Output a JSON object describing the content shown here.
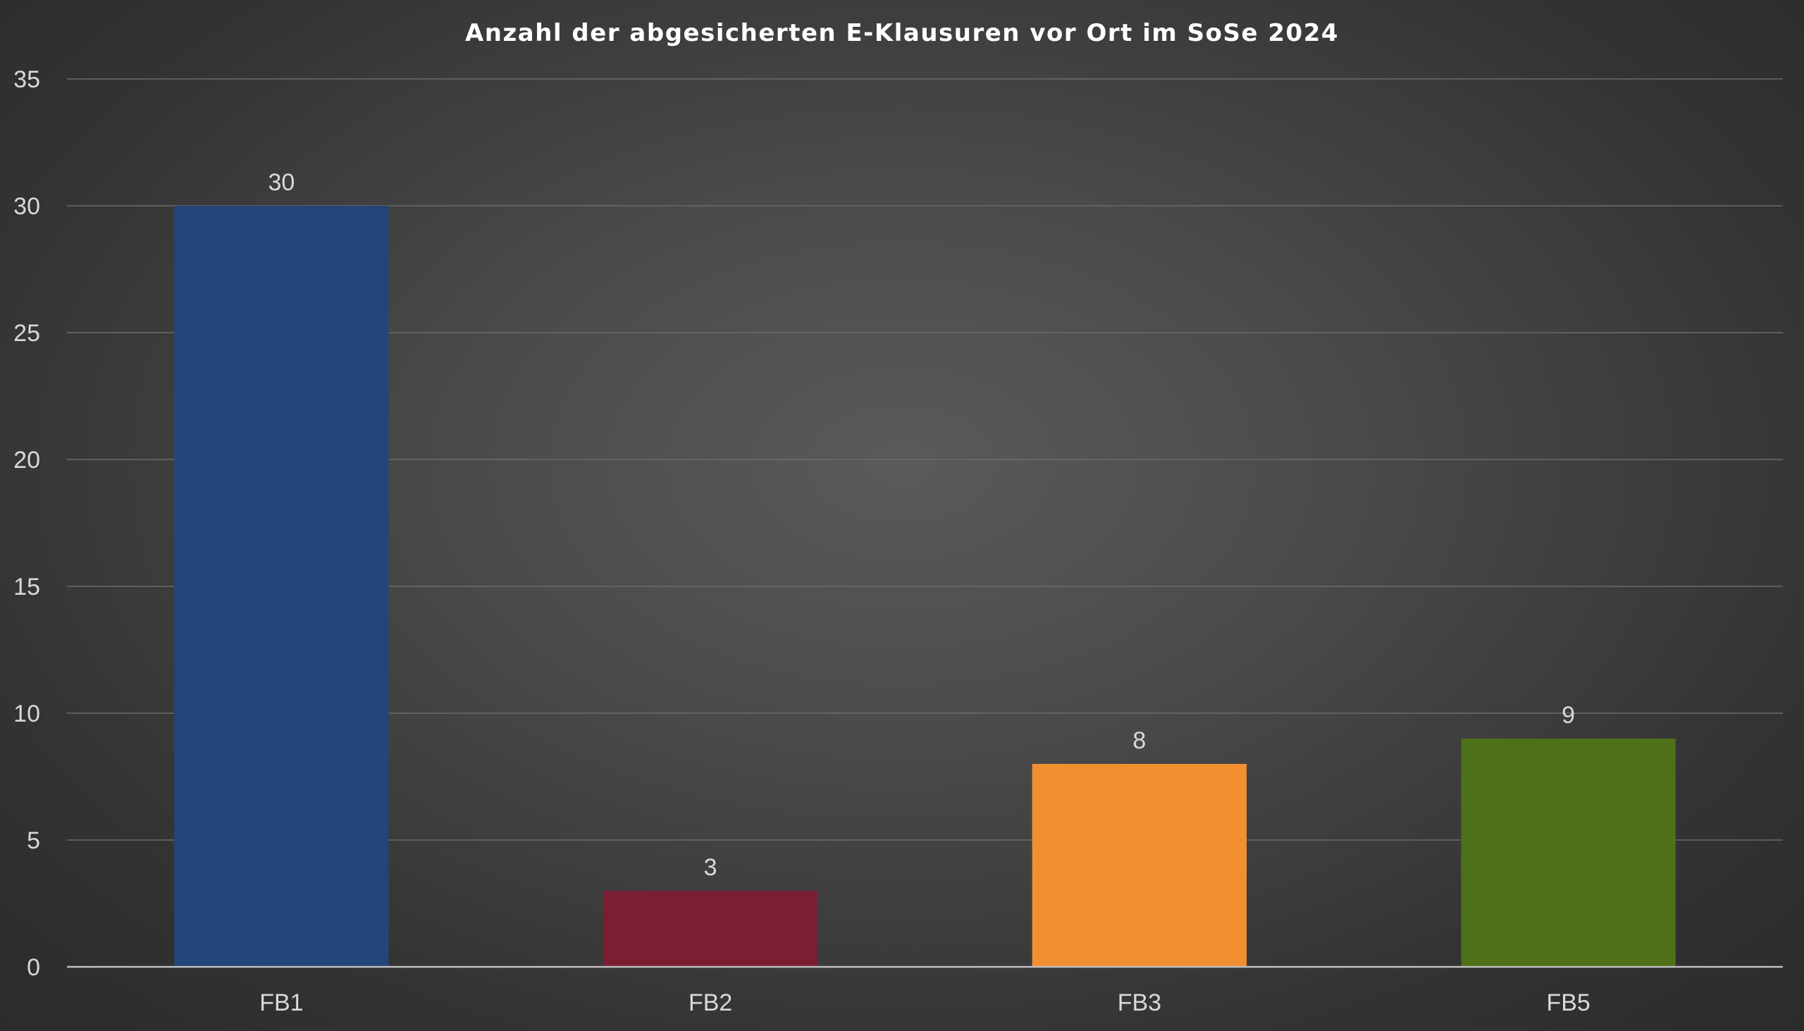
{
  "chart_data": {
    "type": "bar",
    "title": "Anzahl der abgesicherten E-Klausuren vor Ort im SoSe 2024",
    "xlabel": "",
    "ylabel": "",
    "categories": [
      "FB1",
      "FB2",
      "FB3",
      "FB5"
    ],
    "values": [
      30,
      3,
      8,
      9
    ],
    "colors": [
      "#234579",
      "#7b1e34",
      "#f48f31",
      "#4e7017"
    ],
    "ylim": [
      0,
      35
    ],
    "yticks": [
      0,
      5,
      10,
      15,
      20,
      25,
      30,
      35
    ],
    "grid": true,
    "data_labels": true,
    "legend": "none"
  }
}
